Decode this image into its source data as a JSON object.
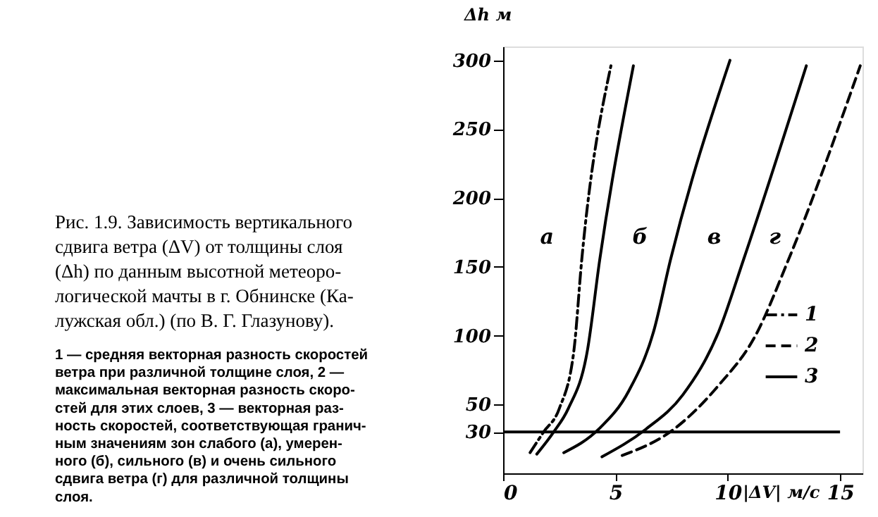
{
  "chart_data": {
    "type": "line",
    "xlabel": "|ΔV| м/с",
    "ylabel": "Δh м",
    "xlim": [
      0,
      16
    ],
    "ylim": [
      0,
      310
    ],
    "xticks": [
      0,
      5,
      10,
      15
    ],
    "yticks": [
      30,
      50,
      100,
      150,
      200,
      250,
      300
    ],
    "grid": false,
    "legend": "bottom right",
    "marker": "none",
    "series": [
      {
        "name": "1",
        "color": "#000000",
        "line_style": "dashdot",
        "x": [
          1.2,
          1.8,
          2.5,
          3.15,
          3.5,
          4.8
        ],
        "values": [
          15,
          30,
          47,
          89,
          155,
          296
        ]
      },
      {
        "name": "2",
        "color": "#000000",
        "line_style": "dashed",
        "x": [
          5.3,
          7.6,
          9.6,
          11.2,
          12.7,
          15.9
        ],
        "values": [
          13,
          32,
          64,
          99,
          155,
          296
        ]
      },
      {
        "name": "3",
        "color": "#000000",
        "line_style": "solid",
        "x": [
          1.5,
          2.25,
          2.9,
          3.75,
          4.3,
          5.8
        ],
        "values": [
          14,
          30,
          47,
          89,
          155,
          296
        ]
      },
      {
        "color": "#000000",
        "line_style": "solid",
        "x": [
          2.7,
          4.25,
          5.6,
          6.7,
          7.45,
          10.1
        ],
        "values": [
          15,
          32,
          60,
          103,
          155,
          300
        ]
      },
      {
        "color": "#000000",
        "line_style": "solid",
        "x": [
          4.4,
          6.35,
          8.0,
          9.6,
          10.7,
          13.5
        ],
        "values": [
          12,
          32,
          57,
          103,
          155,
          296
        ]
      }
    ],
    "ref_lines": [
      {
        "axis": "y",
        "value": 30
      }
    ],
    "annotations": [
      "а",
      "б",
      "в",
      "г",
      "Рис. 1.9. Зависимость вертикального\nсдвига ветра (ΔV) от толщины слоя\n(Δh) по данным высотной метеоро-\nлогической мачты в г. Обнинске (Ка-\nлужская обл.) (по В. Г. Глазунову).",
      "1 — средняя векторная разность скоростей\nветра при различной толщине слоя, 2 —\nмаксимальная векторная разность скоро-\nстей для этих слоев, 3 — векторная раз-\nность скоростей, соответствующая гранич-\nным значениям зон слабого (а), умерен-\nного (б), сильного (в) и очень сильного\nсдвига ветра (г) для различной толщины\nслоя."
    ]
  }
}
